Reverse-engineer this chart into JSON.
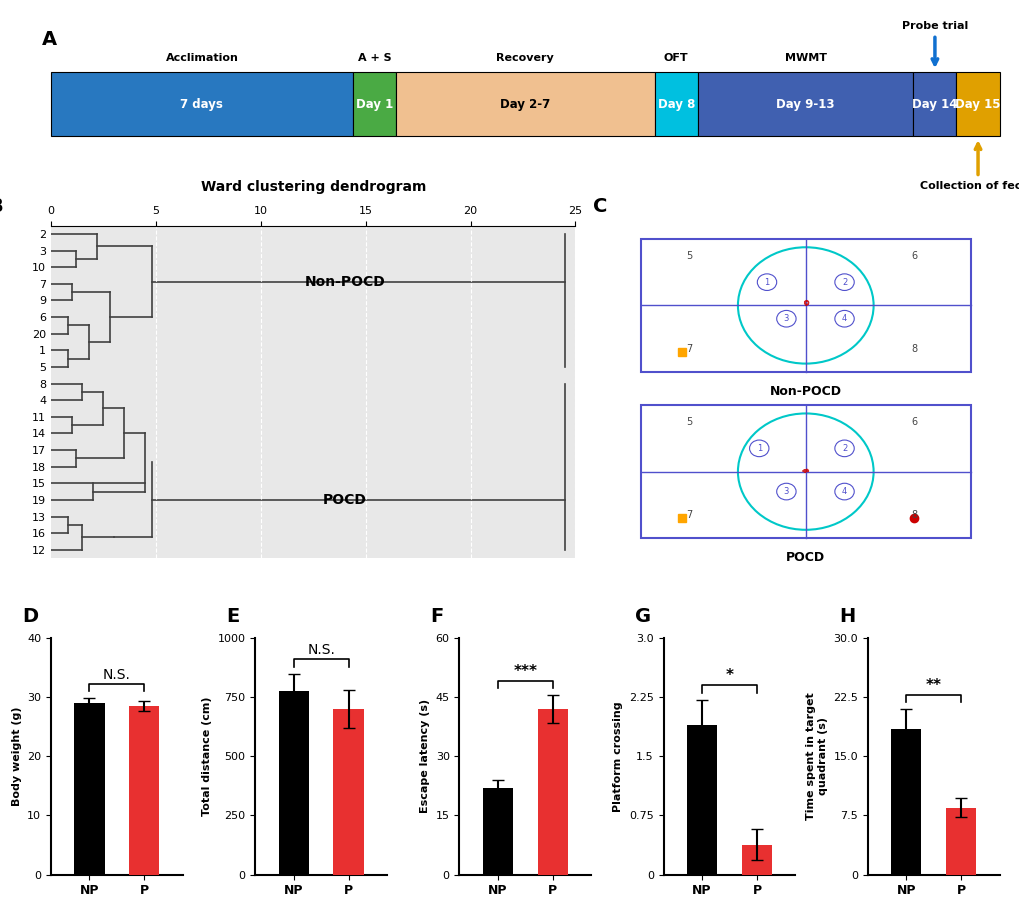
{
  "panel_A": {
    "segments": [
      {
        "label_top": "Acclimation",
        "label_bottom": "7 days",
        "color": "#2878c0",
        "text_color": "white"
      },
      {
        "label_top": "A + S",
        "label_bottom": "Day 1",
        "color": "#4aaa44",
        "text_color": "white"
      },
      {
        "label_top": "Recovery",
        "label_bottom": "Day 2-7",
        "color": "#f0c090",
        "text_color": "black"
      },
      {
        "label_top": "OFT",
        "label_bottom": "Day 8",
        "color": "#00c0e0",
        "text_color": "white"
      },
      {
        "label_top": "MWMT",
        "label_bottom": "Day 9-13",
        "color": "#4060b0",
        "text_color": "white"
      },
      {
        "label_top": "",
        "label_bottom": "Day 14",
        "color": "#4060b0",
        "text_color": "white"
      },
      {
        "label_top": "",
        "label_bottom": "Day 15",
        "color": "#e0a000",
        "text_color": "white"
      }
    ],
    "probe_trial_day": 5,
    "feces_day": 6,
    "arrow_blue_color": "#1070d0",
    "arrow_gold_color": "#e0a000"
  },
  "panel_B": {
    "title": "Ward clustering dendrogram",
    "labels": [
      "2",
      "3",
      "10",
      "7",
      "9",
      "6",
      "20",
      "1",
      "5",
      "8",
      "4",
      "11",
      "14",
      "17",
      "18",
      "15",
      "19",
      "13",
      "16",
      "12"
    ],
    "xlim": [
      0,
      25
    ],
    "xticks": [
      0,
      5,
      10,
      15,
      20,
      25
    ],
    "non_pocd_label": "Non-POCD",
    "pocd_label": "POCD",
    "bg_color": "#e8e8e8"
  },
  "panel_D": {
    "label": "D",
    "ylabel": "Body weight (g)",
    "xlabel_NP": "NP",
    "xlabel_P": "P",
    "ylim": [
      0,
      40
    ],
    "yticks": [
      0,
      10,
      20,
      30,
      40
    ],
    "NP_mean": 29.0,
    "NP_sem": 0.8,
    "P_mean": 28.5,
    "P_sem": 0.8,
    "sig_text": "N.S.",
    "bar_color_NP": "#000000",
    "bar_color_P": "#e83030"
  },
  "panel_E": {
    "label": "E",
    "ylabel": "Total distance (cm)",
    "xlabel_NP": "NP",
    "xlabel_P": "P",
    "ylim": [
      0,
      1000
    ],
    "yticks": [
      0,
      250,
      500,
      750,
      1000
    ],
    "NP_mean": 775,
    "NP_sem": 75,
    "P_mean": 700,
    "P_sem": 80,
    "sig_text": "N.S.",
    "bar_color_NP": "#000000",
    "bar_color_P": "#e83030"
  },
  "panel_F": {
    "label": "F",
    "ylabel": "Escape latency (s)",
    "xlabel_NP": "NP",
    "xlabel_P": "P",
    "ylim": [
      0,
      60
    ],
    "yticks": [
      0,
      15,
      30,
      45,
      60
    ],
    "NP_mean": 22,
    "NP_sem": 2.0,
    "P_mean": 42,
    "P_sem": 3.5,
    "sig_text": "***",
    "bar_color_NP": "#000000",
    "bar_color_P": "#e83030"
  },
  "panel_G": {
    "label": "G",
    "ylabel": "Platform crossing",
    "xlabel_NP": "NP",
    "xlabel_P": "P",
    "ylim": [
      0,
      3.0
    ],
    "yticks": [
      0,
      0.75,
      1.5,
      2.25,
      3.0
    ],
    "NP_mean": 1.9,
    "NP_sem": 0.32,
    "P_mean": 0.38,
    "P_sem": 0.2,
    "sig_text": "*",
    "bar_color_NP": "#000000",
    "bar_color_P": "#e83030"
  },
  "panel_H": {
    "label": "H",
    "ylabel": "Time spent in target\nquadrant (s)",
    "xlabel_NP": "NP",
    "xlabel_P": "P",
    "ylim": [
      0,
      30.0
    ],
    "yticks": [
      0,
      7.5,
      15.0,
      22.5,
      30.0
    ],
    "NP_mean": 18.5,
    "NP_sem": 2.5,
    "P_mean": 8.5,
    "P_sem": 1.2,
    "sig_text": "**",
    "bar_color_NP": "#000000",
    "bar_color_P": "#e83030"
  }
}
